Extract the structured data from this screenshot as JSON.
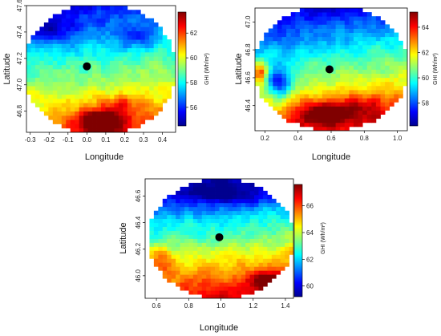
{
  "colors": {
    "colormap": [
      "#00008f",
      "#0000ff",
      "#0080ff",
      "#00ffff",
      "#80ff80",
      "#ffff00",
      "#ff8000",
      "#ff0000",
      "#800000"
    ],
    "site_marker": "#000000"
  },
  "chart_data": [
    {
      "type": "heatmap",
      "title": "",
      "xlabel": "Longitude",
      "ylabel": "Latitude",
      "colorbar_label": "GHI (Wh/m²)",
      "xlim": [
        -0.32,
        0.47
      ],
      "ylim": [
        46.64,
        47.6
      ],
      "xticks": [
        -0.3,
        -0.2,
        -0.1,
        0.0,
        0.1,
        0.2,
        0.3,
        0.4
      ],
      "xticklabels": [
        "-0.3",
        "-0.2",
        "-0.1",
        "0.0",
        "0.1",
        "0.2",
        "0.3",
        "0.4"
      ],
      "yticks": [
        46.8,
        47.0,
        47.2,
        47.4,
        47.6
      ],
      "yticklabels": [
        "46.8",
        "47.0",
        "47.2",
        "47.4",
        "47.6"
      ],
      "colorbar_range": [
        54.5,
        63.7
      ],
      "colorbar_ticks": [
        56,
        58,
        60,
        62
      ],
      "colorbar_ticklabels": [
        "56",
        "58",
        "60",
        "62"
      ],
      "site": {
        "x": 0.0,
        "y": 47.14
      },
      "domain": {
        "center": [
          0.07,
          47.12
        ],
        "radius": [
          0.405,
          0.5
        ]
      },
      "field": {
        "seed": 11,
        "base": 58.8,
        "lat_gradient": -3.2,
        "lon_gradient": 0.3,
        "blobs": [
          [
            0.08,
            46.72,
            5.0,
            0.12,
            0.09
          ],
          [
            0.18,
            46.85,
            1.6,
            0.1,
            0.07
          ],
          [
            -0.18,
            47.42,
            -1.8,
            0.13,
            0.1
          ],
          [
            0.25,
            47.35,
            -1.2,
            0.1,
            0.08
          ]
        ],
        "noise": 0.9
      }
    },
    {
      "type": "heatmap",
      "title": "",
      "xlabel": "Longitude",
      "ylabel": "Latitude",
      "colorbar_label": "GHI (Wh/m²)",
      "xlim": [
        0.14,
        1.06
      ],
      "ylim": [
        46.22,
        47.1
      ],
      "xticks": [
        0.2,
        0.4,
        0.6,
        0.8,
        1.0
      ],
      "xticklabels": [
        "0.2",
        "0.4",
        "0.6",
        "0.8",
        "1.0"
      ],
      "yticks": [
        46.4,
        46.6,
        46.8,
        47.0
      ],
      "yticklabels": [
        "46.4",
        "46.6",
        "46.8",
        "47.0"
      ],
      "colorbar_range": [
        56.2,
        65.2
      ],
      "colorbar_ticks": [
        58,
        60,
        62,
        64
      ],
      "colorbar_ticklabels": [
        "58",
        "60",
        "62",
        "64"
      ],
      "site": {
        "x": 0.59,
        "y": 46.66
      },
      "domain": {
        "center": [
          0.6,
          46.67
        ],
        "radius": [
          0.47,
          0.45
        ]
      },
      "field": {
        "seed": 23,
        "base": 60.5,
        "lat_gradient": -3.6,
        "lon_gradient": 0.6,
        "blobs": [
          [
            0.29,
            46.56,
            -3.4,
            0.07,
            0.11
          ],
          [
            0.17,
            46.64,
            3.5,
            0.04,
            0.07
          ],
          [
            0.55,
            46.35,
            3.0,
            0.18,
            0.09
          ],
          [
            0.8,
            46.4,
            1.5,
            0.15,
            0.1
          ]
        ],
        "noise": 0.8
      }
    },
    {
      "type": "heatmap",
      "title": "",
      "xlabel": "Longitude",
      "ylabel": "Latitude",
      "colorbar_label": "GHI (Wh/m²)",
      "xlim": [
        0.53,
        1.45
      ],
      "ylim": [
        45.83,
        46.73
      ],
      "xticks": [
        0.6,
        0.8,
        1.0,
        1.2,
        1.4
      ],
      "xticklabels": [
        "0.6",
        "0.8",
        "1.0",
        "1.2",
        "1.4"
      ],
      "yticks": [
        46.0,
        46.2,
        46.4,
        46.6
      ],
      "yticklabels": [
        "46.0",
        "46.2",
        "46.4",
        "46.6"
      ],
      "colorbar_range": [
        59.2,
        67.6
      ],
      "colorbar_ticks": [
        60,
        62,
        64,
        66
      ],
      "colorbar_ticklabels": [
        "60",
        "62",
        "64",
        "66"
      ],
      "site": {
        "x": 0.99,
        "y": 46.29
      },
      "domain": {
        "center": [
          1.0,
          46.28
        ],
        "radius": [
          0.455,
          0.45
        ]
      },
      "field": {
        "seed": 37,
        "base": 63.3,
        "lat_gradient": -3.6,
        "lon_gradient": 0.4,
        "blobs": [
          [
            1.28,
            45.96,
            2.5,
            0.1,
            0.08
          ],
          [
            1.0,
            46.62,
            -2.0,
            0.25,
            0.08
          ],
          [
            0.62,
            46.12,
            1.5,
            0.08,
            0.1
          ]
        ],
        "noise": 0.8
      }
    }
  ]
}
